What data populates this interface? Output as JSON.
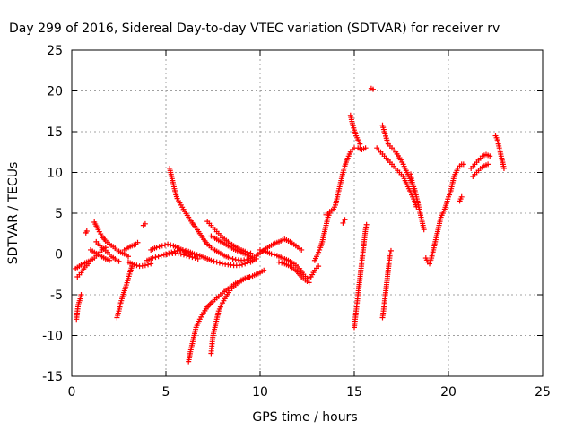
{
  "chart_data": {
    "type": "scatter",
    "title": "Day 299 of 2016, Sidereal Day-to-day VTEC variation (SDTVAR) for receiver rv",
    "xlabel": "GPS time / hours",
    "ylabel": "SDTVAR / TECUs",
    "xlim": [
      0,
      25
    ],
    "ylim": [
      -15,
      25
    ],
    "xticks": [
      0,
      5,
      10,
      15,
      20,
      25
    ],
    "yticks": [
      -15,
      -10,
      -5,
      0,
      5,
      10,
      15,
      20,
      25
    ],
    "grid": true,
    "marker": "+",
    "color": "#ff0000",
    "segments": [
      [
        [
          0.2,
          -1.8
        ],
        [
          0.4,
          -1.5
        ],
        [
          0.6,
          -1.2
        ],
        [
          0.8,
          -1.0
        ],
        [
          1.0,
          -0.8
        ],
        [
          1.2,
          -0.5
        ],
        [
          1.4,
          0.0
        ],
        [
          1.6,
          0.5
        ],
        [
          1.8,
          0.8
        ]
      ],
      [
        [
          0.25,
          -8
        ],
        [
          0.3,
          -7
        ],
        [
          0.35,
          -6.2
        ],
        [
          0.45,
          -5.5
        ],
        [
          0.5,
          -5.0
        ]
      ],
      [
        [
          0.3,
          -2.8
        ],
        [
          0.5,
          -2.3
        ],
        [
          0.7,
          -1.6
        ],
        [
          0.9,
          -1.2
        ]
      ],
      [
        [
          0.75,
          2.6
        ],
        [
          0.8,
          2.8
        ]
      ],
      [
        [
          1.2,
          3.9
        ],
        [
          1.4,
          3.0
        ],
        [
          1.6,
          2.2
        ],
        [
          1.8,
          1.6
        ],
        [
          2.0,
          1.2
        ],
        [
          2.2,
          0.9
        ],
        [
          2.4,
          0.5
        ],
        [
          2.6,
          0.2
        ],
        [
          2.8,
          0.0
        ],
        [
          3.0,
          -0.3
        ]
      ],
      [
        [
          1.3,
          1.5
        ],
        [
          1.5,
          1.0
        ],
        [
          1.7,
          0.6
        ],
        [
          1.9,
          0.2
        ],
        [
          2.1,
          -0.3
        ],
        [
          2.3,
          -0.6
        ],
        [
          2.5,
          -0.9
        ]
      ],
      [
        [
          1.0,
          0.5
        ],
        [
          1.2,
          0.2
        ],
        [
          1.5,
          -0.2
        ],
        [
          1.8,
          -0.6
        ],
        [
          2.0,
          -0.8
        ]
      ],
      [
        [
          2.4,
          -7.8
        ],
        [
          2.5,
          -7.0
        ],
        [
          2.6,
          -6.0
        ],
        [
          2.7,
          -5.2
        ],
        [
          2.8,
          -4.5
        ],
        [
          2.9,
          -3.8
        ],
        [
          3.0,
          -3.0
        ],
        [
          3.1,
          -2.2
        ],
        [
          3.2,
          -1.5
        ]
      ],
      [
        [
          2.8,
          0.5
        ],
        [
          3.0,
          0.8
        ],
        [
          3.2,
          1.0
        ],
        [
          3.4,
          1.2
        ],
        [
          3.5,
          1.4
        ]
      ],
      [
        [
          3.0,
          -1.0
        ],
        [
          3.3,
          -1.3
        ],
        [
          3.6,
          -1.5
        ],
        [
          3.9,
          -1.4
        ],
        [
          4.2,
          -1.2
        ]
      ],
      [
        [
          3.8,
          3.5
        ],
        [
          3.9,
          3.7
        ]
      ],
      [
        [
          4.0,
          -0.8
        ],
        [
          4.3,
          -0.5
        ],
        [
          4.6,
          -0.3
        ],
        [
          4.9,
          -0.1
        ],
        [
          5.2,
          0.0
        ],
        [
          5.5,
          0.1
        ],
        [
          5.8,
          0.0
        ],
        [
          6.1,
          -0.2
        ],
        [
          6.4,
          -0.4
        ],
        [
          6.7,
          -0.6
        ]
      ],
      [
        [
          4.2,
          0.5
        ],
        [
          4.5,
          0.8
        ],
        [
          4.8,
          1.0
        ],
        [
          5.1,
          1.2
        ],
        [
          5.4,
          1.0
        ],
        [
          5.7,
          0.7
        ],
        [
          6.0,
          0.3
        ],
        [
          6.3,
          -0.1
        ]
      ],
      [
        [
          5.0,
          0.0
        ],
        [
          5.3,
          0.2
        ],
        [
          5.6,
          0.4
        ],
        [
          5.9,
          0.5
        ],
        [
          6.2,
          0.3
        ],
        [
          6.5,
          0.0
        ],
        [
          6.8,
          -0.2
        ],
        [
          7.1,
          -0.5
        ],
        [
          7.4,
          -0.8
        ],
        [
          7.7,
          -1.0
        ],
        [
          8.0,
          -1.2
        ],
        [
          8.3,
          -1.3
        ],
        [
          8.6,
          -1.4
        ],
        [
          8.9,
          -1.4
        ],
        [
          9.2,
          -1.2
        ],
        [
          9.5,
          -1.0
        ],
        [
          9.8,
          -0.6
        ]
      ],
      [
        [
          5.2,
          10.5
        ],
        [
          5.3,
          9.5
        ],
        [
          5.4,
          8.5
        ],
        [
          5.5,
          7.5
        ],
        [
          5.6,
          6.8
        ],
        [
          5.8,
          6.0
        ],
        [
          6.0,
          5.2
        ],
        [
          6.2,
          4.5
        ],
        [
          6.4,
          3.8
        ],
        [
          6.6,
          3.2
        ],
        [
          6.8,
          2.5
        ],
        [
          7.0,
          1.8
        ],
        [
          7.2,
          1.2
        ],
        [
          7.5,
          0.6
        ],
        [
          7.8,
          0.2
        ],
        [
          8.1,
          -0.2
        ],
        [
          8.4,
          -0.5
        ],
        [
          8.7,
          -0.7
        ],
        [
          9.0,
          -0.8
        ],
        [
          9.3,
          -0.7
        ],
        [
          9.6,
          -0.4
        ]
      ],
      [
        [
          6.2,
          -13.2
        ],
        [
          6.3,
          -12.0
        ],
        [
          6.4,
          -11.0
        ],
        [
          6.5,
          -10.0
        ],
        [
          6.6,
          -9.0
        ],
        [
          6.8,
          -8.0
        ],
        [
          7.0,
          -7.2
        ],
        [
          7.2,
          -6.5
        ],
        [
          7.5,
          -5.8
        ],
        [
          7.8,
          -5.2
        ],
        [
          8.1,
          -4.6
        ],
        [
          8.4,
          -4.1
        ],
        [
          8.7,
          -3.6
        ],
        [
          9.0,
          -3.2
        ],
        [
          9.3,
          -2.9
        ],
        [
          9.6,
          -2.7
        ],
        [
          9.9,
          -2.4
        ],
        [
          10.2,
          -2.0
        ]
      ],
      [
        [
          7.4,
          -12.2
        ],
        [
          7.45,
          -11.0
        ],
        [
          7.5,
          -10.0
        ],
        [
          7.6,
          -9.0
        ],
        [
          7.7,
          -8.0
        ],
        [
          7.8,
          -7.0
        ],
        [
          8.0,
          -6.0
        ],
        [
          8.2,
          -5.2
        ],
        [
          8.4,
          -4.5
        ],
        [
          8.6,
          -4.0
        ],
        [
          8.8,
          -3.6
        ],
        [
          9.0,
          -3.3
        ],
        [
          9.2,
          -3.0
        ],
        [
          9.4,
          -2.9
        ]
      ],
      [
        [
          7.2,
          4.0
        ],
        [
          7.4,
          3.5
        ],
        [
          7.6,
          3.0
        ],
        [
          7.8,
          2.5
        ],
        [
          8.0,
          2.0
        ],
        [
          8.3,
          1.5
        ],
        [
          8.6,
          1.0
        ],
        [
          8.9,
          0.6
        ],
        [
          9.2,
          0.3
        ],
        [
          9.5,
          0.1
        ]
      ],
      [
        [
          7.4,
          2.2
        ],
        [
          7.7,
          1.8
        ],
        [
          8.0,
          1.4
        ],
        [
          8.3,
          1.0
        ],
        [
          8.6,
          0.6
        ],
        [
          8.9,
          0.3
        ],
        [
          9.2,
          0.0
        ],
        [
          9.5,
          -0.3
        ]
      ],
      [
        [
          9.5,
          -0.8
        ],
        [
          9.8,
          -0.2
        ],
        [
          10.1,
          0.3
        ],
        [
          10.4,
          0.8
        ],
        [
          10.7,
          1.2
        ],
        [
          11.0,
          1.5
        ],
        [
          11.3,
          1.8
        ],
        [
          11.6,
          1.5
        ],
        [
          11.9,
          1.0
        ],
        [
          12.2,
          0.5
        ]
      ],
      [
        [
          10.0,
          0.5
        ],
        [
          10.3,
          0.3
        ],
        [
          10.6,
          0.0
        ],
        [
          10.9,
          -0.2
        ],
        [
          11.2,
          -0.5
        ],
        [
          11.5,
          -0.8
        ],
        [
          11.8,
          -1.2
        ],
        [
          12.1,
          -1.8
        ],
        [
          12.3,
          -2.5
        ],
        [
          12.5,
          -3.0
        ],
        [
          12.7,
          -2.8
        ],
        [
          12.9,
          -2.0
        ],
        [
          13.1,
          -1.5
        ]
      ],
      [
        [
          11.0,
          -1.0
        ],
        [
          11.3,
          -1.2
        ],
        [
          11.6,
          -1.5
        ],
        [
          11.9,
          -2.0
        ],
        [
          12.2,
          -2.8
        ],
        [
          12.4,
          -3.2
        ],
        [
          12.6,
          -3.5
        ]
      ],
      [
        [
          12.9,
          -0.8
        ],
        [
          13.0,
          -0.3
        ],
        [
          13.1,
          0.2
        ],
        [
          13.2,
          0.8
        ],
        [
          13.3,
          1.5
        ],
        [
          13.4,
          2.5
        ],
        [
          13.5,
          3.5
        ],
        [
          13.6,
          4.5
        ],
        [
          13.7,
          5.0
        ]
      ],
      [
        [
          13.5,
          4.8
        ],
        [
          13.7,
          5.2
        ],
        [
          13.9,
          5.5
        ],
        [
          14.0,
          6.0
        ],
        [
          14.1,
          7.0
        ],
        [
          14.2,
          8.0
        ],
        [
          14.3,
          9.0
        ],
        [
          14.4,
          10.0
        ],
        [
          14.5,
          10.8
        ],
        [
          14.6,
          11.5
        ],
        [
          14.7,
          12.0
        ],
        [
          14.8,
          12.5
        ],
        [
          14.9,
          12.8
        ],
        [
          15.0,
          13.0
        ],
        [
          15.2,
          13.0
        ],
        [
          15.4,
          12.8
        ],
        [
          15.6,
          13.0
        ]
      ],
      [
        [
          14.4,
          3.8
        ],
        [
          14.5,
          4.2
        ]
      ],
      [
        [
          14.8,
          17.0
        ],
        [
          14.9,
          16.0
        ],
        [
          15.0,
          15.2
        ],
        [
          15.1,
          14.5
        ],
        [
          15.2,
          14.0
        ],
        [
          15.3,
          13.5
        ]
      ],
      [
        [
          15.0,
          -9.0
        ],
        [
          15.05,
          -8.0
        ],
        [
          15.1,
          -7.0
        ],
        [
          15.15,
          -6.0
        ],
        [
          15.2,
          -5.0
        ],
        [
          15.25,
          -4.0
        ],
        [
          15.3,
          -3.0
        ],
        [
          15.35,
          -2.0
        ],
        [
          15.4,
          -1.0
        ],
        [
          15.45,
          0.0
        ],
        [
          15.5,
          1.0
        ],
        [
          15.55,
          2.0
        ],
        [
          15.6,
          3.0
        ],
        [
          15.65,
          3.6
        ]
      ],
      [
        [
          15.9,
          20.3
        ],
        [
          16.0,
          20.2
        ]
      ],
      [
        [
          16.2,
          13.0
        ],
        [
          16.4,
          12.5
        ],
        [
          16.6,
          12.0
        ],
        [
          16.8,
          11.5
        ],
        [
          17.0,
          11.0
        ],
        [
          17.2,
          10.5
        ],
        [
          17.4,
          10.0
        ],
        [
          17.6,
          9.5
        ]
      ],
      [
        [
          16.5,
          15.8
        ],
        [
          16.6,
          15.0
        ],
        [
          16.7,
          14.2
        ],
        [
          16.8,
          13.5
        ],
        [
          17.0,
          13.0
        ],
        [
          17.2,
          12.5
        ],
        [
          17.4,
          11.8
        ],
        [
          17.6,
          11.0
        ],
        [
          17.8,
          10.0
        ],
        [
          18.0,
          9.0
        ],
        [
          18.2,
          8.0
        ],
        [
          18.3,
          7.0
        ],
        [
          18.4,
          6.0
        ],
        [
          18.5,
          5.0
        ],
        [
          18.6,
          4.0
        ],
        [
          18.7,
          3.0
        ]
      ],
      [
        [
          16.5,
          -7.8
        ],
        [
          16.55,
          -7.0
        ],
        [
          16.6,
          -6.0
        ],
        [
          16.65,
          -5.0
        ],
        [
          16.7,
          -4.0
        ],
        [
          16.75,
          -3.0
        ],
        [
          16.8,
          -2.0
        ],
        [
          16.85,
          -1.0
        ],
        [
          16.9,
          0.0
        ],
        [
          16.95,
          0.4
        ]
      ],
      [
        [
          17.6,
          9.5
        ],
        [
          17.8,
          8.5
        ],
        [
          18.0,
          7.5
        ],
        [
          18.1,
          7.0
        ],
        [
          18.2,
          6.5
        ],
        [
          18.3,
          5.8
        ]
      ],
      [
        [
          18.0,
          9.8
        ],
        [
          18.1,
          8.5
        ],
        [
          18.2,
          7.5
        ]
      ],
      [
        [
          18.8,
          -0.5
        ],
        [
          18.9,
          -1.0
        ],
        [
          19.0,
          -1.2
        ],
        [
          19.1,
          -0.5
        ],
        [
          19.2,
          0.5
        ],
        [
          19.3,
          1.5
        ],
        [
          19.4,
          2.5
        ],
        [
          19.5,
          3.5
        ],
        [
          19.6,
          4.5
        ],
        [
          19.7,
          5.0
        ],
        [
          19.8,
          5.5
        ],
        [
          19.9,
          6.2
        ],
        [
          20.0,
          7.0
        ],
        [
          20.1,
          7.5
        ],
        [
          20.2,
          8.5
        ],
        [
          20.3,
          9.5
        ],
        [
          20.4,
          10.0
        ],
        [
          20.5,
          10.5
        ],
        [
          20.6,
          10.8
        ],
        [
          20.7,
          11.0
        ],
        [
          20.8,
          11.0
        ]
      ],
      [
        [
          20.6,
          6.5
        ],
        [
          20.7,
          7.0
        ]
      ],
      [
        [
          21.2,
          10.5
        ],
        [
          21.4,
          11.0
        ],
        [
          21.6,
          11.5
        ],
        [
          21.8,
          12.0
        ],
        [
          22.0,
          12.2
        ],
        [
          22.2,
          12.0
        ]
      ],
      [
        [
          21.3,
          9.5
        ],
        [
          21.5,
          10.0
        ],
        [
          21.7,
          10.5
        ],
        [
          21.9,
          10.8
        ],
        [
          22.1,
          11.0
        ]
      ],
      [
        [
          22.5,
          14.5
        ],
        [
          22.6,
          14.0
        ],
        [
          22.7,
          13.0
        ],
        [
          22.8,
          12.0
        ],
        [
          22.9,
          11.0
        ],
        [
          22.95,
          10.5
        ]
      ]
    ]
  }
}
